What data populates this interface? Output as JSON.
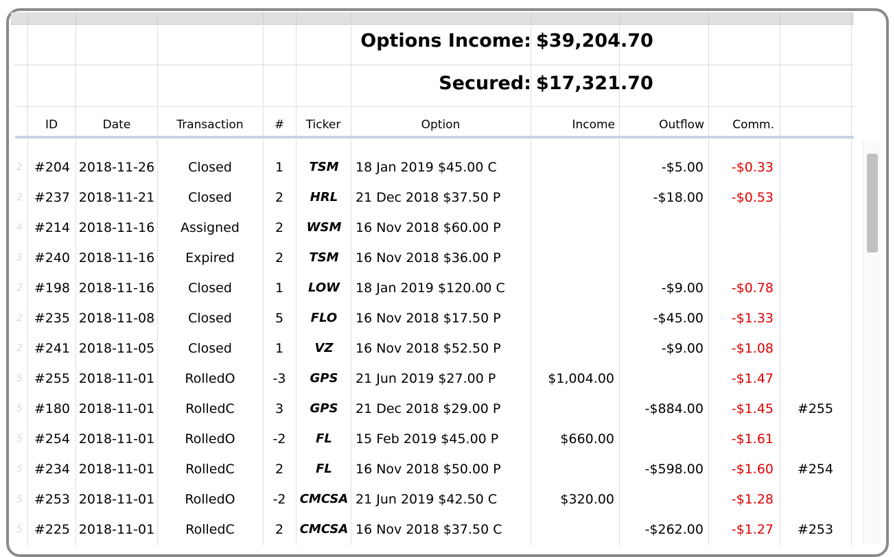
{
  "summary": {
    "income_label": "Options Income:",
    "income_value": "$39,204.70",
    "secured_label": "Secured:",
    "secured_value": "$17,321.70"
  },
  "columns": [
    "ID",
    "Date",
    "Transaction",
    "#",
    "Ticker",
    "Option",
    "Income",
    "Outflow",
    "Comm."
  ],
  "colors": {
    "outflow_blue": "#d0e0f1",
    "assigned_pink": "#ead1dc",
    "expired_green": "#daf8de",
    "income_peach": "#fbe2cb",
    "rolled_yellow": "#fdf1cc",
    "negative_red": "#e00000"
  },
  "rows": [
    {
      "id": "#204",
      "date": "2018-11-26",
      "transaction": "Closed",
      "n": "1",
      "ticker": "TSM",
      "option": "18 Jan 2019 $45.00 C",
      "income": "",
      "outflow": "-$5.00",
      "comm": "-$0.33",
      "ref": "",
      "style": "closed"
    },
    {
      "id": "#237",
      "date": "2018-11-21",
      "transaction": "Closed",
      "n": "2",
      "ticker": "HRL",
      "option": "21 Dec 2018 $37.50 P",
      "income": "",
      "outflow": "-$18.00",
      "comm": "-$0.53",
      "ref": "",
      "style": "closed"
    },
    {
      "id": "#214",
      "date": "2018-11-16",
      "transaction": "Assigned",
      "n": "2",
      "ticker": "WSM",
      "option": "16 Nov 2018 $60.00 P",
      "income": "",
      "outflow": "",
      "comm": "",
      "ref": "",
      "style": "assigned"
    },
    {
      "id": "#240",
      "date": "2018-11-16",
      "transaction": "Expired",
      "n": "2",
      "ticker": "TSM",
      "option": "16 Nov 2018 $36.00 P",
      "income": "",
      "outflow": "",
      "comm": "",
      "ref": "",
      "style": "expired"
    },
    {
      "id": "#198",
      "date": "2018-11-16",
      "transaction": "Closed",
      "n": "1",
      "ticker": "LOW",
      "option": "18 Jan 2019 $120.00 C",
      "income": "",
      "outflow": "-$9.00",
      "comm": "-$0.78",
      "ref": "",
      "style": "closed"
    },
    {
      "id": "#235",
      "date": "2018-11-08",
      "transaction": "Closed",
      "n": "5",
      "ticker": "FLO",
      "option": "16 Nov 2018 $17.50 P",
      "income": "",
      "outflow": "-$45.00",
      "comm": "-$1.33",
      "ref": "",
      "style": "closed"
    },
    {
      "id": "#241",
      "date": "2018-11-05",
      "transaction": "Closed",
      "n": "1",
      "ticker": "VZ",
      "option": "16 Nov 2018 $52.50 P",
      "income": "",
      "outflow": "-$9.00",
      "comm": "-$1.08",
      "ref": "",
      "style": "closed"
    },
    {
      "id": "#255",
      "date": "2018-11-01",
      "transaction": "RolledO",
      "n": "-3",
      "ticker": "GPS",
      "option": "21 Jun 2019 $27.00 P",
      "income": "$1,004.00",
      "outflow": "",
      "comm": "-$1.47",
      "ref": "",
      "style": "rolledo"
    },
    {
      "id": "#180",
      "date": "2018-11-01",
      "transaction": "RolledC",
      "n": "3",
      "ticker": "GPS",
      "option": "21 Dec 2018 $29.00 P",
      "income": "",
      "outflow": "-$884.00",
      "comm": "-$1.45",
      "ref": "#255",
      "style": "rolledc"
    },
    {
      "id": "#254",
      "date": "2018-11-01",
      "transaction": "RolledO",
      "n": "-2",
      "ticker": "FL",
      "option": "15 Feb 2019 $45.00 P",
      "income": "$660.00",
      "outflow": "",
      "comm": "-$1.61",
      "ref": "",
      "style": "rolledo"
    },
    {
      "id": "#234",
      "date": "2018-11-01",
      "transaction": "RolledC",
      "n": "2",
      "ticker": "FL",
      "option": "16 Nov 2018 $50.00 P",
      "income": "",
      "outflow": "-$598.00",
      "comm": "-$1.60",
      "ref": "#254",
      "style": "rolledc"
    },
    {
      "id": "#253",
      "date": "2018-11-01",
      "transaction": "RolledO",
      "n": "-2",
      "ticker": "CMCSA",
      "option": "21 Jun 2019 $42.50 C",
      "income": "$320.00",
      "outflow": "",
      "comm": "-$1.28",
      "ref": "",
      "style": "rolledo"
    },
    {
      "id": "#225",
      "date": "2018-11-01",
      "transaction": "RolledC",
      "n": "2",
      "ticker": "CMCSA",
      "option": "16 Nov 2018 $37.50 C",
      "income": "",
      "outflow": "-$262.00",
      "comm": "-$1.27",
      "ref": "#253",
      "style": "rolledc"
    }
  ]
}
